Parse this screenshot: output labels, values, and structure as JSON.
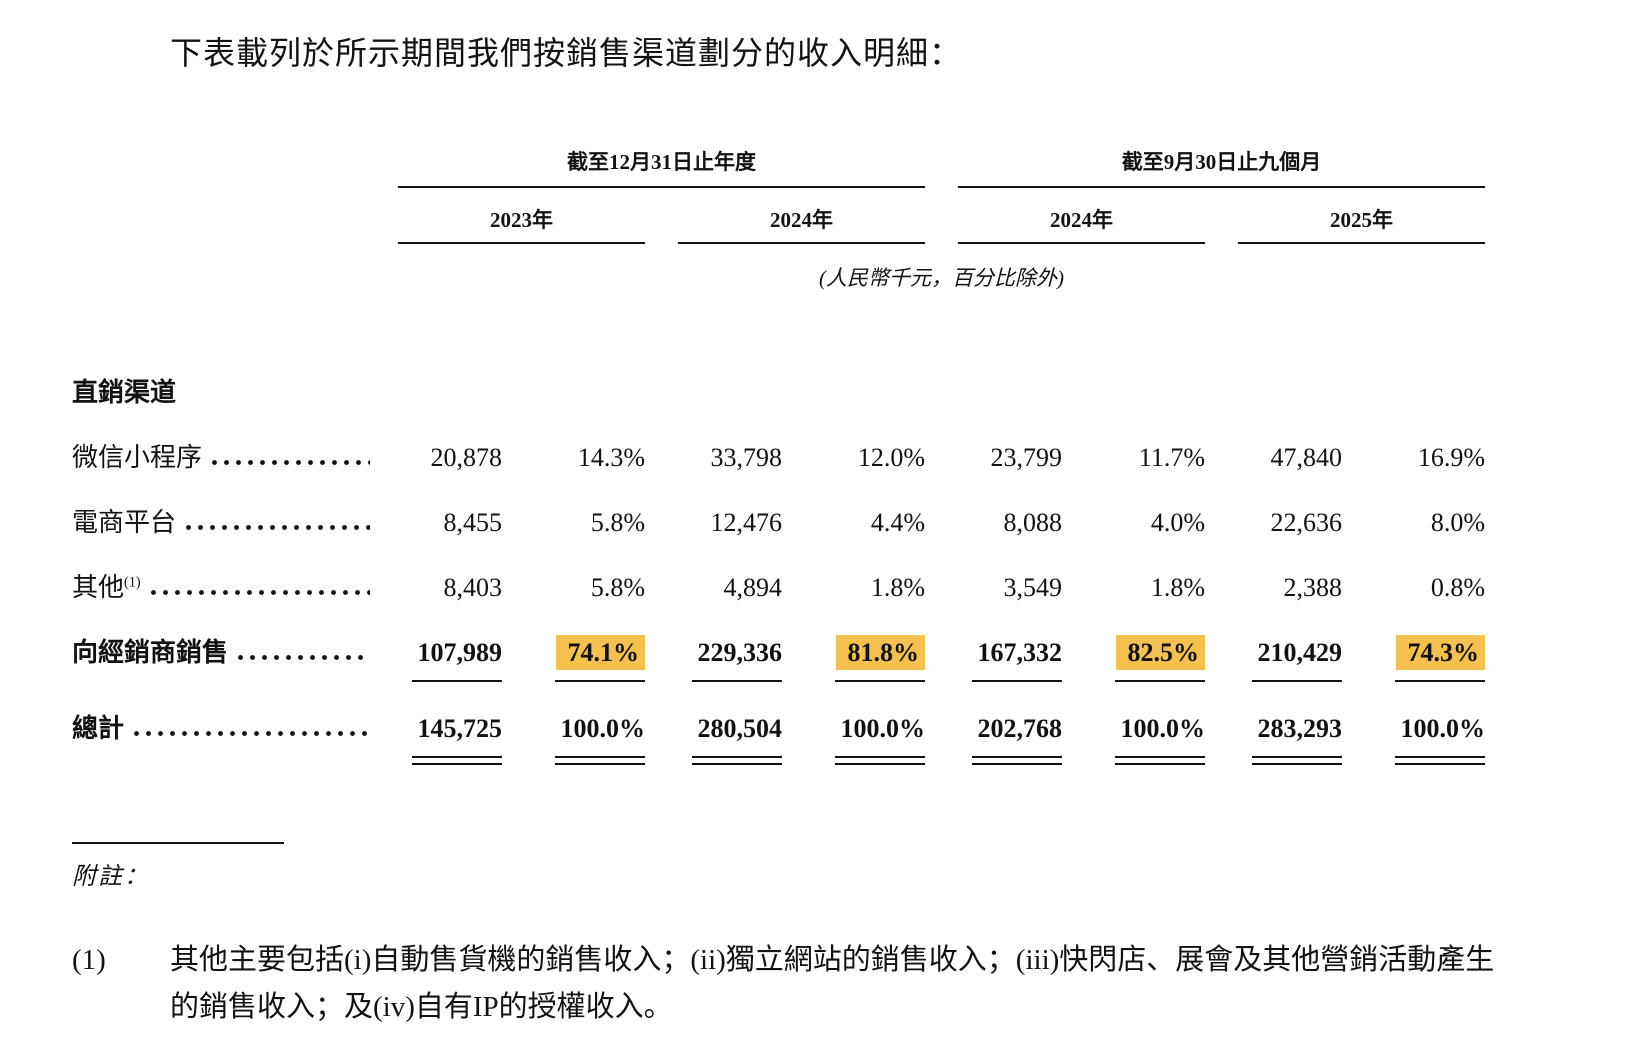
{
  "document": {
    "intro_text": "下表載列於所示期間我們按銷售渠道劃分的收入明細：",
    "units_note": "(人民幣千元，百分比除外)"
  },
  "table": {
    "period_groups": [
      {
        "label": "截至12月31日止年度",
        "years": [
          "2023年",
          "2024年"
        ]
      },
      {
        "label": "截至9月30日止九個月",
        "years": [
          "2024年",
          "2025年"
        ]
      }
    ],
    "section_header": "直銷渠道",
    "rows": [
      {
        "label": "微信小程序",
        "values": [
          "20,878",
          "14.3%",
          "33,798",
          "12.0%",
          "23,799",
          "11.7%",
          "47,840",
          "16.9%"
        ]
      },
      {
        "label": "電商平台",
        "values": [
          "8,455",
          "5.8%",
          "12,476",
          "4.4%",
          "8,088",
          "4.0%",
          "22,636",
          "8.0%"
        ]
      },
      {
        "label": "其他",
        "footnote_ref": "(1)",
        "values": [
          "8,403",
          "5.8%",
          "4,894",
          "1.8%",
          "3,549",
          "1.8%",
          "2,388",
          "0.8%"
        ]
      },
      {
        "label": "向經銷商銷售",
        "values": [
          "107,989",
          "74.1%",
          "229,336",
          "81.8%",
          "167,332",
          "82.5%",
          "210,429",
          "74.3%"
        ]
      }
    ],
    "total_row": {
      "label": "總計",
      "values": [
        "145,725",
        "100.0%",
        "280,504",
        "100.0%",
        "202,768",
        "100.0%",
        "283,293",
        "100.0%"
      ]
    }
  },
  "notes": {
    "heading": "附註：",
    "items": [
      {
        "marker": "(1)",
        "text": "其他主要包括(i)自動售貨機的銷售收入；(ii)獨立網站的銷售收入；(iii)快閃店、展會及其他營銷活動產生的銷售收入；及(iv)自有IP的授權收入。"
      }
    ]
  },
  "colors": {
    "highlight": "#F4C14F"
  }
}
